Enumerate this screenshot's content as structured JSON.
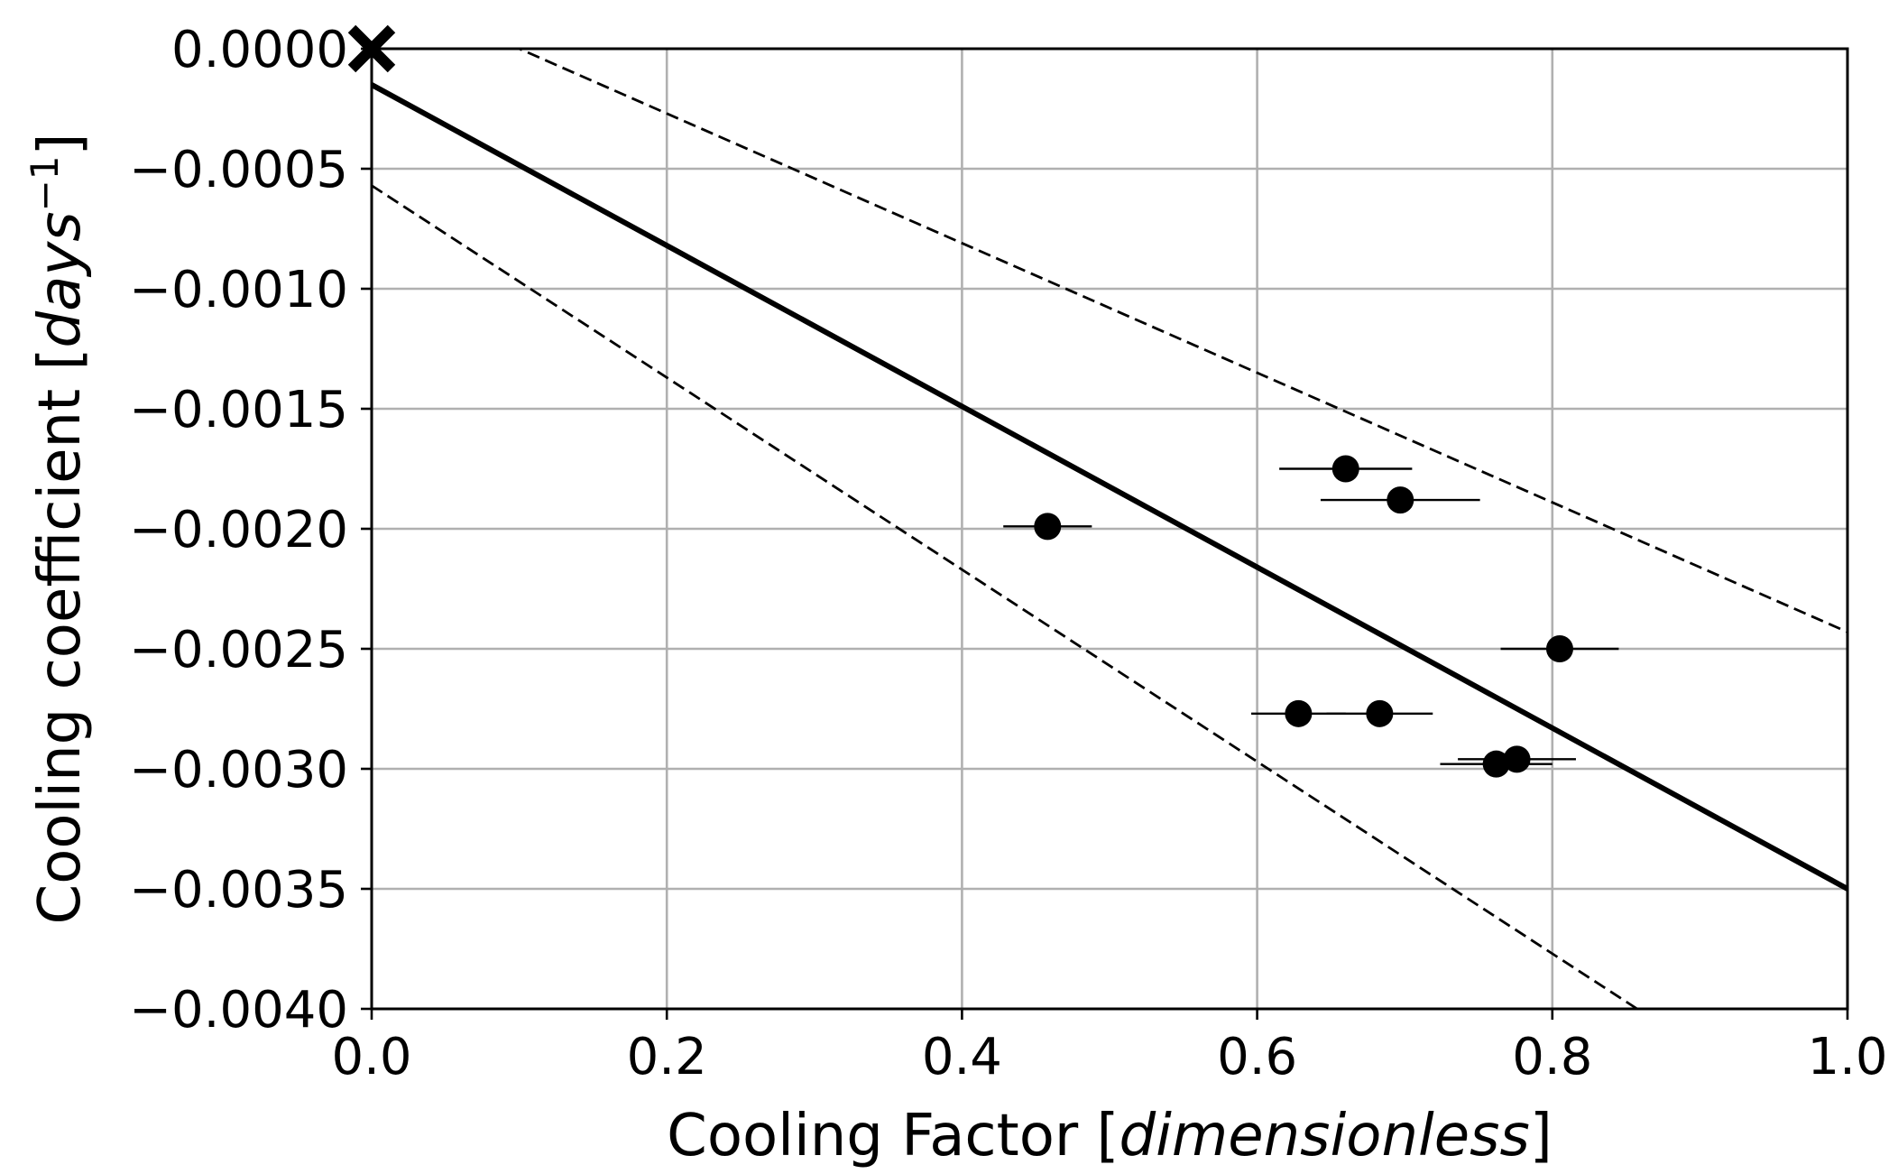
{
  "chart_data": {
    "type": "scatter",
    "title": "",
    "xlabel_text": "Cooling Factor [",
    "xlabel_unit": "dimensionless",
    "xlabel_close": "]",
    "ylabel_text": "Cooling coefficient [",
    "ylabel_unit": "days",
    "ylabel_exp": "−1",
    "ylabel_close": "]",
    "xlim": [
      0.0,
      1.0
    ],
    "ylim": [
      -0.004,
      0.0
    ],
    "grid": true,
    "x_ticks": [
      0.0,
      0.2,
      0.4,
      0.6,
      0.8,
      1.0
    ],
    "x_tick_labels": [
      "0.0",
      "0.2",
      "0.4",
      "0.6",
      "0.8",
      "1.0"
    ],
    "y_ticks": [
      0.0,
      -0.0005,
      -0.001,
      -0.0015,
      -0.002,
      -0.0025,
      -0.003,
      -0.0035,
      -0.004
    ],
    "y_tick_labels": [
      "0.0000",
      "−0.0005",
      "−0.0010",
      "−0.0015",
      "−0.0020",
      "−0.0025",
      "−0.0030",
      "−0.0035",
      "−0.0040"
    ],
    "points": [
      {
        "x": 0.458,
        "y": -0.00199,
        "xerr": 0.03
      },
      {
        "x": 0.66,
        "y": -0.00175,
        "xerr": 0.045
      },
      {
        "x": 0.697,
        "y": -0.00188,
        "xerr": 0.054
      },
      {
        "x": 0.805,
        "y": -0.0025,
        "xerr": 0.04
      },
      {
        "x": 0.628,
        "y": -0.00277,
        "xerr": 0.032
      },
      {
        "x": 0.683,
        "y": -0.00277,
        "xerr": 0.036
      },
      {
        "x": 0.762,
        "y": -0.00298,
        "xerr": 0.038
      },
      {
        "x": 0.776,
        "y": -0.00296,
        "xerr": 0.04
      }
    ],
    "origin_marker": {
      "x": 0.0,
      "y": 0.0,
      "symbol": "x"
    },
    "fit_line": {
      "intercept": -0.00015,
      "slope": -0.00335
    },
    "upper_bound": {
      "intercept": 0.00027,
      "slope": -0.0027
    },
    "lower_bound": {
      "intercept": -0.00057,
      "slope": -0.004
    }
  }
}
